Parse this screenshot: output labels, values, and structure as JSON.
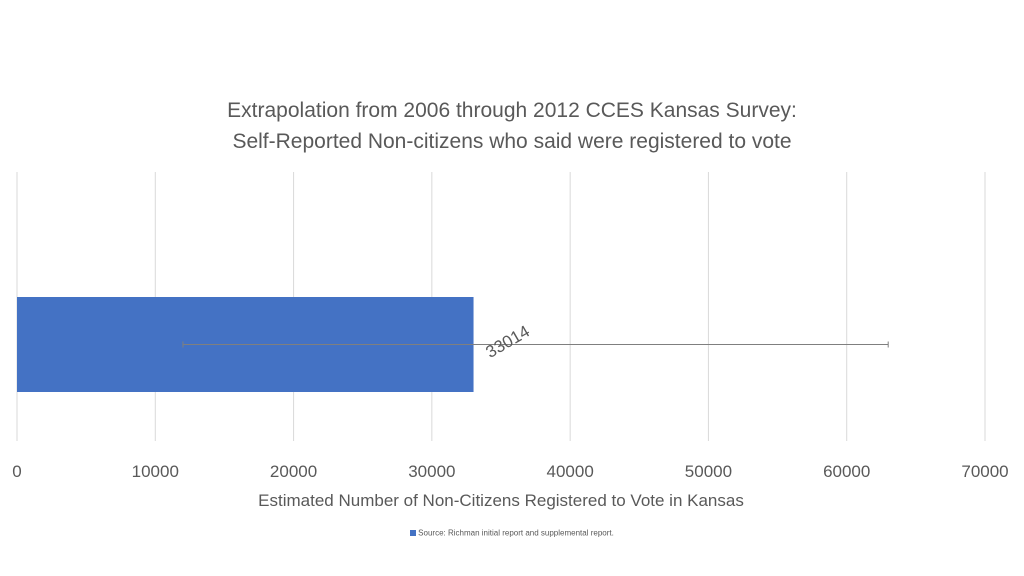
{
  "chart_data": {
    "type": "bar",
    "orientation": "horizontal",
    "title": "Extrapolation from 2006 through 2012 CCES Kansas Survey:",
    "subtitle": "Self-Reported Non-citizens who said were registered to vote",
    "xlabel": "Estimated Number of Non-Citizens Registered to Vote in Kansas",
    "ylabel": "",
    "xlim": [
      0,
      70000
    ],
    "xticks": [
      "0",
      "10000",
      "20000",
      "30000",
      "40000",
      "50000",
      "60000",
      "70000"
    ],
    "grid": true,
    "series": [
      {
        "name": "Source: Richman initial report and supplemental report.",
        "values": [
          33014
        ],
        "data_labels": [
          "33014"
        ],
        "error_bar": {
          "low": 12000,
          "high": 63000
        },
        "color": "#4472c4"
      }
    ],
    "legend_position": "bottom"
  }
}
